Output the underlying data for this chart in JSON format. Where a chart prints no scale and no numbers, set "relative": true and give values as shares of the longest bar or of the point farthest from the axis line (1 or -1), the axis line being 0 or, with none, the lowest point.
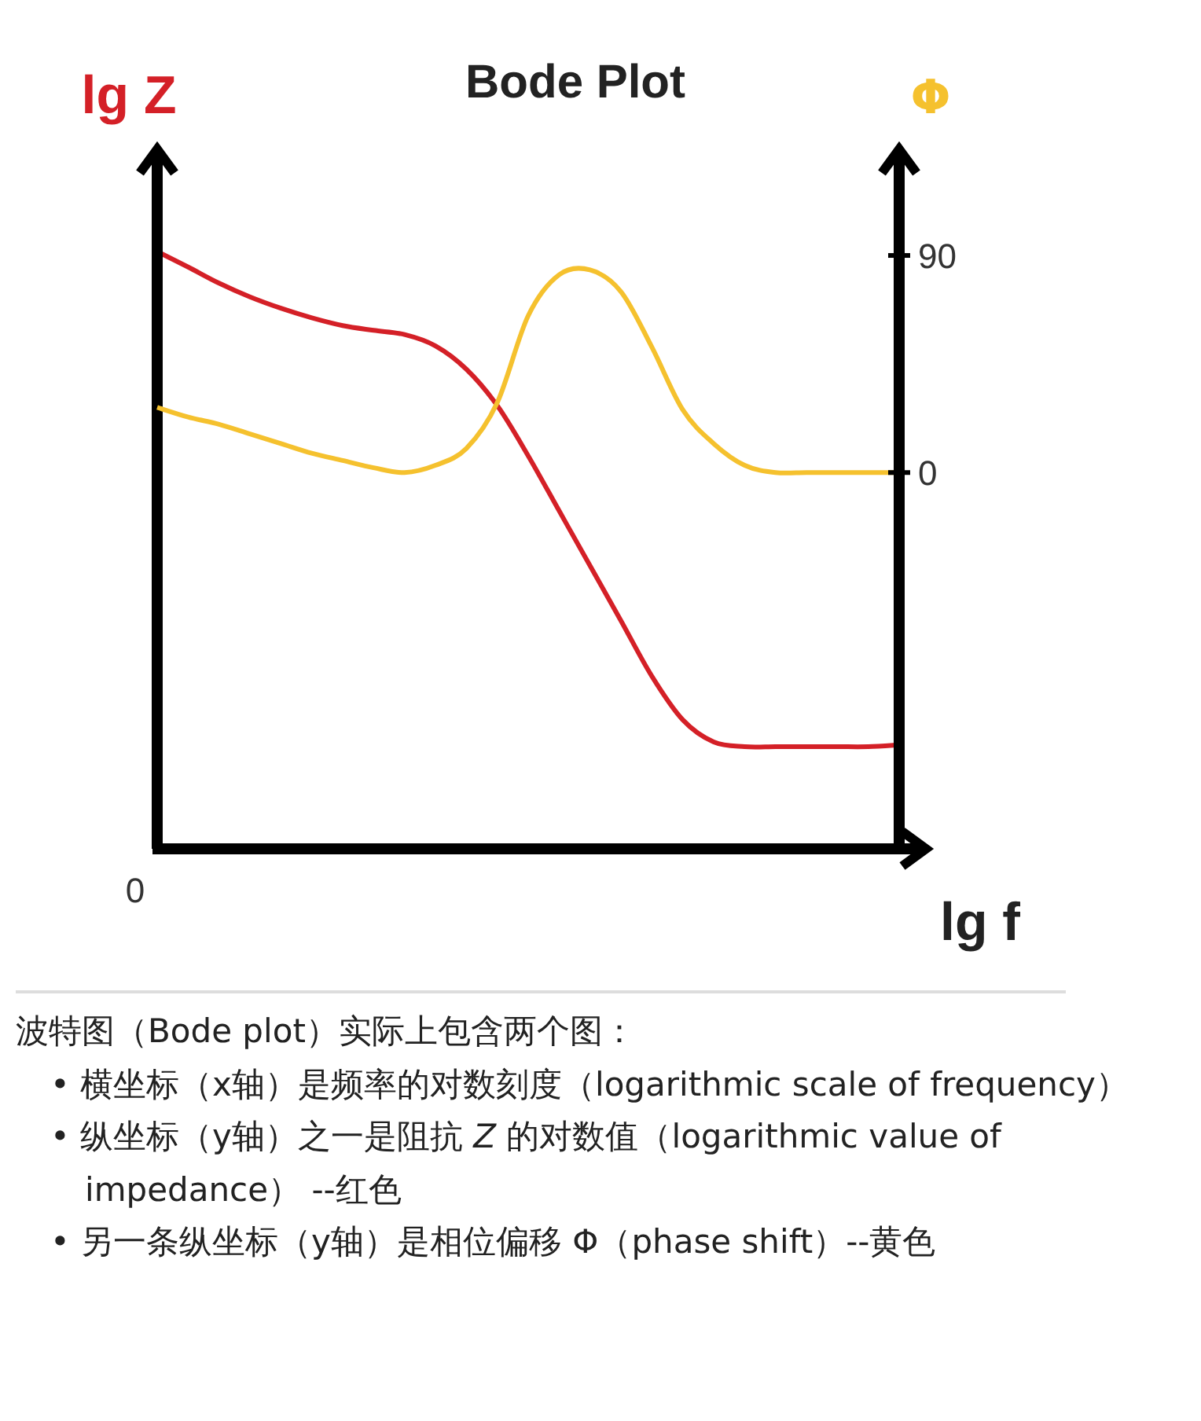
{
  "chart_data": [
    {
      "type": "line",
      "title": "Bode Plot",
      "ylabel": "lg Z",
      "xlabel": "lg f",
      "relative": true,
      "categories": [
        null,
        null,
        null,
        null,
        null,
        null,
        null,
        null,
        null,
        null,
        null,
        null,
        null,
        null,
        null,
        null,
        null,
        null,
        null,
        null,
        null,
        null,
        null,
        null,
        null
      ],
      "series": [
        {
          "color": "#d42027",
          "values": [
            1,
            0.974,
            0.947,
            0.924,
            0.905,
            0.889,
            0.876,
            0.868,
            0.861,
            0.842,
            0.803,
            0.742,
            0.658,
            0.566,
            0.474,
            0.382,
            0.289,
            0.216,
            0.179,
            0.171,
            0.171,
            0.171,
            0.171,
            0.171,
            0.174
          ]
        }
      ],
      "grid": false,
      "marker": "none",
      "line_style": "solid",
      "annotations": [
        "0",
        "波特图（Bode plot）实际上包含两个图：",
        "• 横坐标（x轴）是频率的对数刻度（logarithmic scale of frequency）",
        "• 纵坐标（y轴）之一是阻抗 *Z* 的对数值（logarithmic value of impedance） --红色",
        "• 另一条纵坐标（y轴）是相位偏移 Φ（phase shift）--黄色"
      ]
    },
    {
      "type": "line",
      "ylabel": "Φ",
      "categories": [
        null,
        null,
        null,
        null,
        null,
        null,
        null,
        null,
        null,
        null,
        null,
        null,
        null,
        null,
        null,
        null,
        null,
        null,
        null,
        null,
        null,
        null,
        null,
        null,
        null
      ],
      "series": [
        {
          "color": "#f5c12e",
          "values": [
            27,
            23,
            20,
            16,
            12,
            8,
            5,
            2,
            0,
            3,
            10,
            29,
            65,
            82,
            84,
            75,
            52,
            26,
            12,
            3,
            0,
            0,
            0,
            0,
            0
          ]
        }
      ],
      "ylim": [
        -156,
        134
      ],
      "yticks": [
        0,
        90
      ],
      "grid": false,
      "marker": "none",
      "line_style": "solid"
    }
  ]
}
